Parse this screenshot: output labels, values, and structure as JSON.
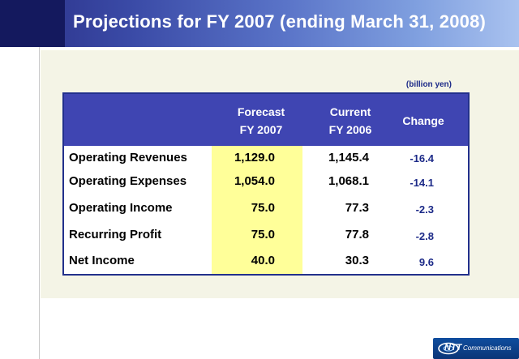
{
  "header": {
    "title": "Projections for FY 2007 (ending March 31, 2008)"
  },
  "table": {
    "units": "(billion yen)",
    "columns": [
      {
        "line1": "Forecast",
        "line2": "FY 2007"
      },
      {
        "line1": "Current",
        "line2": "FY 2006"
      },
      {
        "line1": "Change",
        "line2": ""
      }
    ],
    "rows": [
      {
        "label": "Operating Revenues",
        "forecast": "1,129.0",
        "current": "1,145.4",
        "change": "-16.4"
      },
      {
        "label": "Operating Expenses",
        "forecast": "1,054.0",
        "current": "1,068.1",
        "change": "-14.1"
      },
      {
        "label": "Operating Income",
        "forecast": "75.0",
        "current": "77.3",
        "change": "-2.3"
      },
      {
        "label": "Recurring Profit",
        "forecast": "75.0",
        "current": "77.8",
        "change": "-2.8"
      },
      {
        "label": "Net Income",
        "forecast": "40.0",
        "current": "30.3",
        "change": "9.6"
      }
    ]
  },
  "logo": {
    "brand": "NTT",
    "sub": "Communications",
    "color": "#0f4d9e"
  }
}
